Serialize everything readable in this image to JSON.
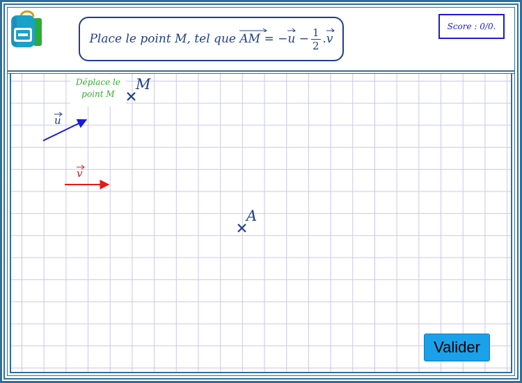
{
  "instruction": {
    "prefix": "Place le point",
    "point": "M",
    "middle": ", tel que",
    "vector_am": "AM",
    "equals": "=",
    "minus1": "−",
    "u_name": "u",
    "minus2": "−",
    "frac_num": "1",
    "frac_den": "2",
    "dot": ".",
    "v_name": "v"
  },
  "score": {
    "label": "Score : 0/0."
  },
  "drag_hint": {
    "line1": "Déplace le",
    "line2": "point M"
  },
  "points": {
    "M": "M",
    "A": "A"
  },
  "vectors": {
    "u": "u",
    "v": "v"
  },
  "buttons": {
    "validate_label": "Valider"
  },
  "colors": {
    "frame": "#2e6e9e",
    "instruction": "#1f3e8a",
    "score": "#1a1ad6",
    "vector_u": "#1a1ad6",
    "vector_v": "#e61a1a",
    "points": "#1f3e8a",
    "hint": "#2fae2f",
    "grid": "#c8c8ec",
    "button": "#1aa1ea"
  },
  "icons": {
    "logo": "backpack-icon"
  }
}
